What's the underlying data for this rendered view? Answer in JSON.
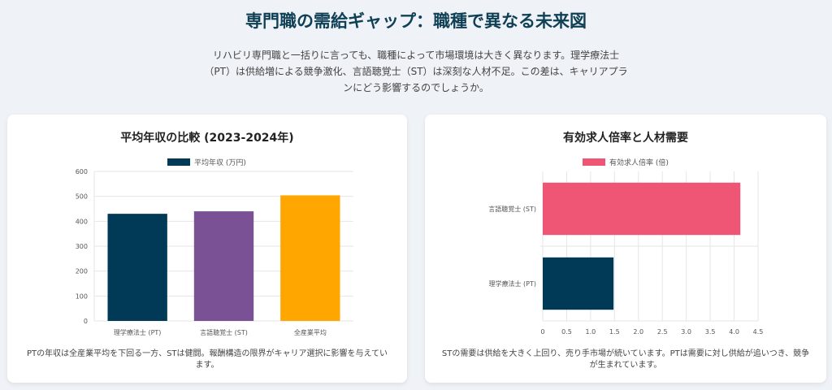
{
  "header": {
    "title": "専門職の需給ギャップ：職種で異なる未来図",
    "intro": "リハビリ専門職と一括りに言っても、職種によって市場環境は大きく異なります。理学療法士（PT）は供給増による競争激化、言語聴覚士（ST）は深刻な人材不足。この差は、キャリアプランにどう影響するのでしょうか。"
  },
  "cards": {
    "salary": {
      "title": "平均年収の比較 (2023-2024年)",
      "caption": "PTの年収は全産業平均を下回る一方、STは健闘。報酬構造の限界がキャリア選択に影響を与えています。"
    },
    "demand": {
      "title": "有効求人倍率と人材需要",
      "caption": "STの需要は供給を大きく上回り、売り手市場が続いています。PTは需要に対し供給が追いつき、競争が生まれています。"
    }
  },
  "chart_data": [
    {
      "type": "bar",
      "title": "平均年収の比較 (2023-2024年)",
      "categories": [
        "理学療法士 (PT)",
        "言語聴覚士 (ST)",
        "全産業平均"
      ],
      "series": [
        {
          "name": "平均年収 (万円)",
          "values": [
            430,
            440,
            504
          ]
        }
      ],
      "colors": [
        "#003a57",
        "#7a5195",
        "#ffa600"
      ],
      "ylim": [
        0,
        600
      ],
      "yticks": [
        "0",
        "100",
        "200",
        "300",
        "400",
        "500",
        "600"
      ],
      "grid": true,
      "legend": "top"
    },
    {
      "type": "bar",
      "orientation": "horizontal",
      "title": "有効求人倍率と人材需要",
      "categories": [
        "言語聴覚士 (ST)",
        "理学療法士 (PT)"
      ],
      "series": [
        {
          "name": "有効求人倍率 (倍)",
          "values": [
            4.13,
            1.48
          ]
        }
      ],
      "colors": [
        "#ef5675",
        "#003a57"
      ],
      "xlim": [
        0,
        4.5
      ],
      "xticks": [
        "0",
        "0.5",
        "1.0",
        "1.5",
        "2.0",
        "2.5",
        "3.0",
        "3.5",
        "4.0",
        "4.5"
      ],
      "grid": true,
      "legend": "top"
    }
  ]
}
